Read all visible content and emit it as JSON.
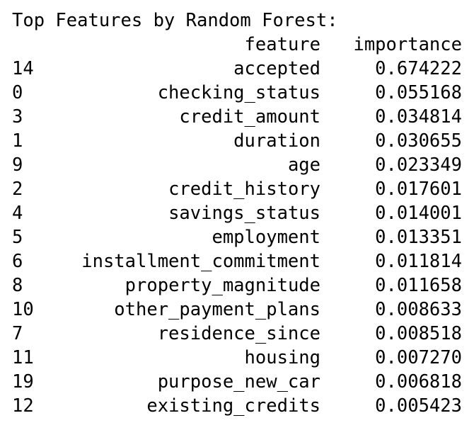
{
  "output": {
    "title": "Top Features by Random Forest:",
    "columns": {
      "index": "",
      "feature": "feature",
      "importance": "importance"
    },
    "rows": [
      {
        "index": "14",
        "feature": "accepted",
        "importance": "0.674222"
      },
      {
        "index": "0",
        "feature": "checking_status",
        "importance": "0.055168"
      },
      {
        "index": "3",
        "feature": "credit_amount",
        "importance": "0.034814"
      },
      {
        "index": "1",
        "feature": "duration",
        "importance": "0.030655"
      },
      {
        "index": "9",
        "feature": "age",
        "importance": "0.023349"
      },
      {
        "index": "2",
        "feature": "credit_history",
        "importance": "0.017601"
      },
      {
        "index": "4",
        "feature": "savings_status",
        "importance": "0.014001"
      },
      {
        "index": "5",
        "feature": "employment",
        "importance": "0.013351"
      },
      {
        "index": "6",
        "feature": "installment_commitment",
        "importance": "0.011814"
      },
      {
        "index": "8",
        "feature": "property_magnitude",
        "importance": "0.011658"
      },
      {
        "index": "10",
        "feature": "other_payment_plans",
        "importance": "0.008633"
      },
      {
        "index": "7",
        "feature": "residence_since",
        "importance": "0.008518"
      },
      {
        "index": "11",
        "feature": "housing",
        "importance": "0.007270"
      },
      {
        "index": "19",
        "feature": "purpose_new_car",
        "importance": "0.006818"
      },
      {
        "index": "12",
        "feature": "existing_credits",
        "importance": "0.005423"
      }
    ]
  }
}
